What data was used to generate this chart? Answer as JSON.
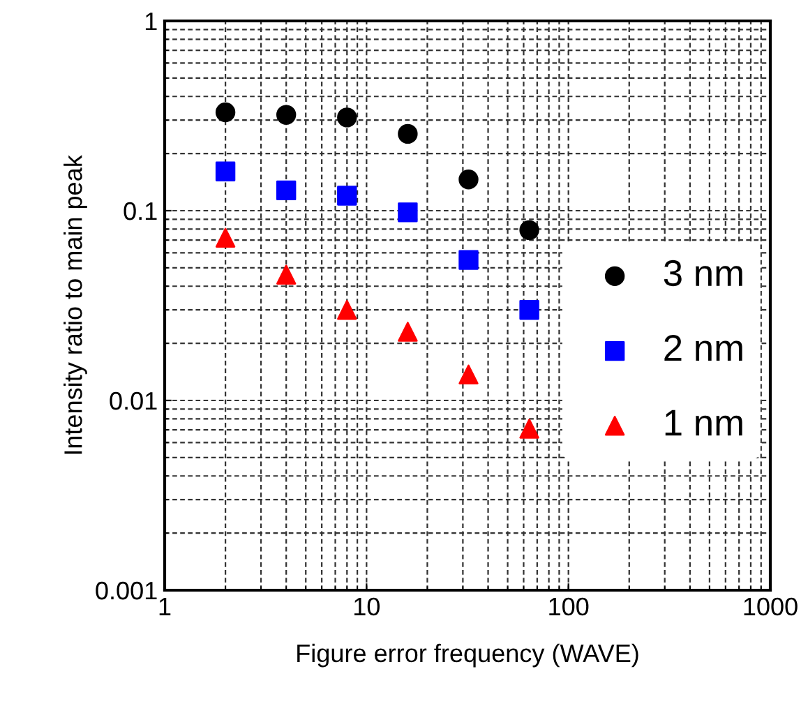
{
  "chart_data": {
    "type": "scatter",
    "xlabel": "Figure error frequency (WAVE)",
    "ylabel": "Intensity ratio to main peak",
    "x": [
      2,
      4,
      8,
      16,
      32,
      64
    ],
    "series": [
      {
        "name": "3 nm",
        "color": "#000000",
        "marker": "circle",
        "values": [
          0.33,
          0.32,
          0.31,
          0.254,
          0.146,
          0.079
        ]
      },
      {
        "name": "2 nm",
        "color": "#0000ff",
        "marker": "square",
        "values": [
          0.161,
          0.128,
          0.12,
          0.098,
          0.055,
          0.03
        ]
      },
      {
        "name": "1 nm",
        "color": "#ff0000",
        "marker": "triangle",
        "values": [
          0.072,
          0.046,
          0.03,
          0.023,
          0.0137,
          0.0071
        ]
      }
    ],
    "log": "xy",
    "xlim": [
      1,
      1000
    ],
    "ylim": [
      0.001,
      1
    ],
    "xticks": [
      1,
      10,
      100,
      1000
    ],
    "yticks": [
      0.001,
      0.01,
      0.1,
      1
    ],
    "grid": true,
    "legend": "right"
  }
}
